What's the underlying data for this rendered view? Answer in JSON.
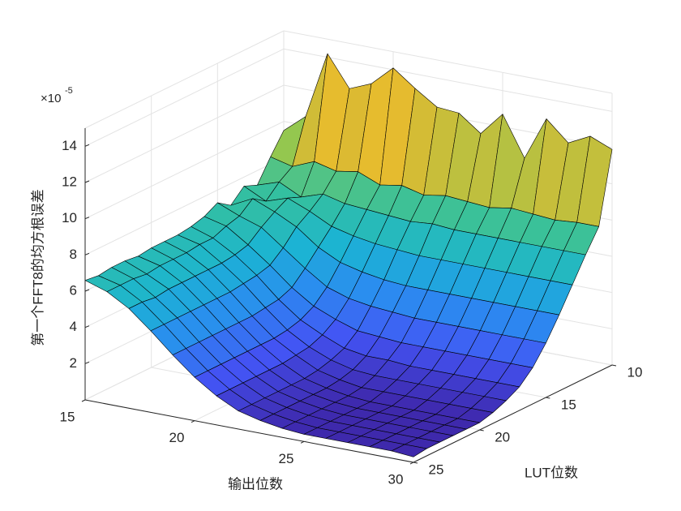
{
  "chart_data": {
    "type": "surface",
    "xlabel": "输出位数",
    "ylabel": "LUT位数",
    "zlabel": "第一个FFT8的均方根误差",
    "z_multiplier": "×10",
    "z_exponent": -5,
    "x": [
      15,
      16,
      17,
      18,
      19,
      20,
      21,
      22,
      23,
      24,
      25,
      26,
      27,
      28,
      29,
      30
    ],
    "y": [
      10,
      11,
      12,
      13,
      14,
      15,
      16,
      17,
      18,
      19,
      20,
      21,
      22,
      23,
      24,
      25
    ],
    "z": [
      [
        9.5,
        10.5,
        14.2,
        12.5,
        13.0,
        14.1,
        13.2,
        12.4,
        12.3,
        11.4,
        12.7,
        10.5,
        12.9,
        11.8,
        12.4,
        11.9
      ],
      [
        8.4,
        8.1,
        8.6,
        8.3,
        8.5,
        8.0,
        8.2,
        7.9,
        8.1,
        8.0,
        7.9,
        8.1,
        8.0,
        7.9,
        8.0,
        8.0
      ],
      [
        7.2,
        7.6,
        7.0,
        7.4,
        7.1,
        7.0,
        6.9,
        6.8,
        6.9,
        6.8,
        6.8,
        6.8,
        6.8,
        6.8,
        6.8,
        6.8
      ],
      [
        7.5,
        6.9,
        7.3,
        6.8,
        6.2,
        5.9,
        5.7,
        5.6,
        5.5,
        5.5,
        5.5,
        5.5,
        5.5,
        5.5,
        5.5,
        5.5
      ],
      [
        6.8,
        7.4,
        6.9,
        6.3,
        5.4,
        4.8,
        4.5,
        4.3,
        4.2,
        4.2,
        4.2,
        4.2,
        4.2,
        4.2,
        4.2,
        4.2
      ],
      [
        7.3,
        6.8,
        6.4,
        5.5,
        4.6,
        3.8,
        3.4,
        3.2,
        3.1,
        3.0,
        3.0,
        3.0,
        3.0,
        3.0,
        3.0,
        3.0
      ],
      [
        6.9,
        6.6,
        5.8,
        4.9,
        3.9,
        3.1,
        2.6,
        2.2,
        2.1,
        2.0,
        2.0,
        2.0,
        2.0,
        2.0,
        2.0,
        2.0
      ],
      [
        6.7,
        6.3,
        5.6,
        4.7,
        3.6,
        2.7,
        2.1,
        1.6,
        1.4,
        1.4,
        1.3,
        1.3,
        1.3,
        1.3,
        1.3,
        1.3
      ],
      [
        6.6,
        6.3,
        5.5,
        4.6,
        3.5,
        2.5,
        1.8,
        1.3,
        1.0,
        0.9,
        0.9,
        0.9,
        0.9,
        0.9,
        0.9,
        0.9
      ],
      [
        6.6,
        6.2,
        5.5,
        4.5,
        3.4,
        2.4,
        1.7,
        1.1,
        0.8,
        0.6,
        0.6,
        0.6,
        0.6,
        0.6,
        0.6,
        0.6
      ],
      [
        6.6,
        6.2,
        5.5,
        4.5,
        3.4,
        2.4,
        1.6,
        1.0,
        0.7,
        0.5,
        0.4,
        0.4,
        0.4,
        0.4,
        0.4,
        0.4
      ],
      [
        6.5,
        6.2,
        5.5,
        4.5,
        3.4,
        2.4,
        1.6,
        1.0,
        0.7,
        0.5,
        0.4,
        0.4,
        0.4,
        0.4,
        0.4,
        0.4
      ],
      [
        6.6,
        6.1,
        5.5,
        4.5,
        3.4,
        2.4,
        1.6,
        1.0,
        0.7,
        0.5,
        0.4,
        0.4,
        0.4,
        0.4,
        0.4,
        0.4
      ],
      [
        6.6,
        6.2,
        5.4,
        4.5,
        3.4,
        2.4,
        1.6,
        1.0,
        0.7,
        0.5,
        0.4,
        0.4,
        0.4,
        0.4,
        0.4,
        0.4
      ],
      [
        6.5,
        6.2,
        5.5,
        4.5,
        3.4,
        2.4,
        1.6,
        1.0,
        0.7,
        0.5,
        0.4,
        0.4,
        0.4,
        0.4,
        0.4,
        0.4
      ],
      [
        6.6,
        6.2,
        5.5,
        4.5,
        3.4,
        2.4,
        1.6,
        1.0,
        0.7,
        0.5,
        0.4,
        0.4,
        0.4,
        0.4,
        0.4,
        0.3
      ]
    ],
    "xlim": [
      15,
      30
    ],
    "ylim": [
      10,
      25
    ],
    "zlim": [
      0,
      15
    ],
    "xticks": [
      15,
      20,
      25,
      30
    ],
    "yticks": [
      10,
      15,
      20,
      25
    ],
    "zticks": [
      2,
      4,
      6,
      8,
      10,
      12,
      14
    ],
    "grid": true,
    "colormap": [
      "#3e26a8",
      "#4354f4",
      "#2b8cf0",
      "#1bb4d3",
      "#34c09f",
      "#8dc852",
      "#e3b92f",
      "#fdd52a",
      "#f9fb15"
    ]
  }
}
